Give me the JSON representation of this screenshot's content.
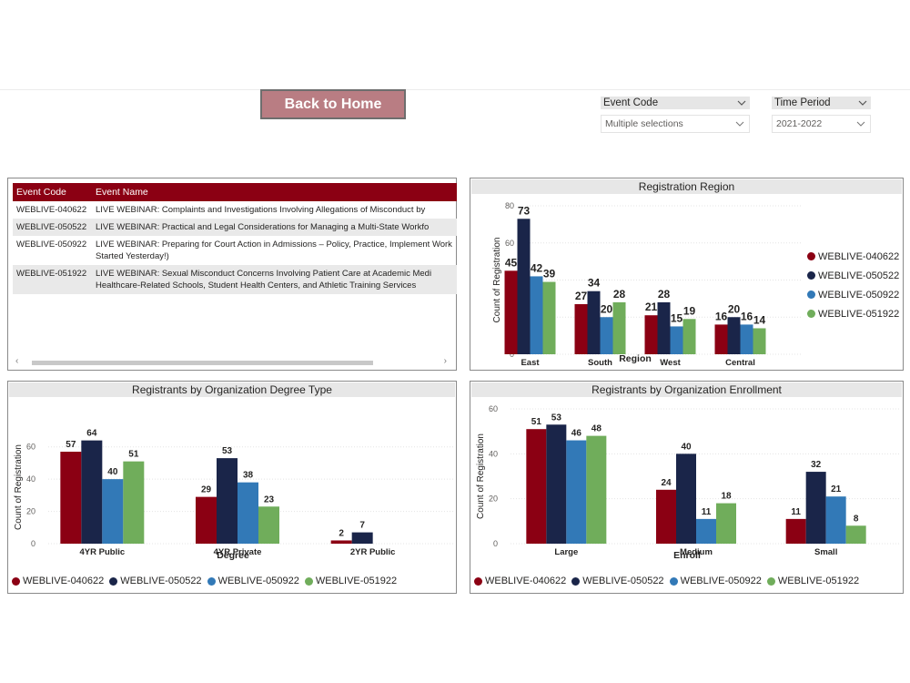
{
  "back_button": "Back to Home",
  "slicers": [
    {
      "title": "Event Code",
      "value": "Multiple selections"
    },
    {
      "title": "Time Period",
      "value": "2021-2022"
    }
  ],
  "events_table": {
    "headers": [
      "Event Code",
      "Event Name"
    ],
    "rows": [
      {
        "code": "WEBLIVE-040622",
        "name": "LIVE WEBINAR: Complaints and Investigations Involving Allegations of Misconduct by"
      },
      {
        "code": "WEBLIVE-050522",
        "name": "LIVE WEBINAR: Practical and Legal Considerations for Managing a Multi-State Workfo"
      },
      {
        "code": "WEBLIVE-050922",
        "name": "LIVE WEBINAR: Preparing for Court Action in Admissions – Policy, Practice, Implement Work Started Yesterday!)"
      },
      {
        "code": "WEBLIVE-051922",
        "name": "LIVE WEBINAR: Sexual Misconduct Concerns Involving Patient Care at Academic Medi Healthcare-Related Schools, Student Health Centers, and Athletic Training Services"
      }
    ]
  },
  "series_colors": [
    "#8b0013",
    "#1a2549",
    "#3279b7",
    "#70ad5b"
  ],
  "chart_data": [
    {
      "type": "bar",
      "title": "Registration Region",
      "xlabel": "Region",
      "ylabel": "Count of Registration",
      "categories": [
        "East",
        "South",
        "West",
        "Central"
      ],
      "ylim": [
        0,
        80
      ],
      "yticks": [
        0,
        20,
        40,
        60,
        80
      ],
      "legend": "right",
      "series": [
        {
          "name": "WEBLIVE-040622",
          "values": [
            45,
            27,
            21,
            16
          ]
        },
        {
          "name": "WEBLIVE-050522",
          "values": [
            73,
            34,
            28,
            20
          ]
        },
        {
          "name": "WEBLIVE-050922",
          "values": [
            42,
            20,
            15,
            16
          ]
        },
        {
          "name": "WEBLIVE-051922",
          "values": [
            39,
            28,
            19,
            14
          ]
        }
      ]
    },
    {
      "type": "bar",
      "title": "Registrants by Organization Degree Type",
      "xlabel": "Degree",
      "ylabel": "Count of Registration",
      "categories": [
        "4YR Public",
        "4YR Private",
        "2YR Public"
      ],
      "ylim": [
        0,
        70
      ],
      "yticks": [
        0,
        20,
        40,
        60
      ],
      "legend": "bottom",
      "series": [
        {
          "name": "WEBLIVE-040622",
          "values": [
            57,
            29,
            2
          ]
        },
        {
          "name": "WEBLIVE-050522",
          "values": [
            64,
            53,
            7
          ]
        },
        {
          "name": "WEBLIVE-050922",
          "values": [
            40,
            38,
            null
          ]
        },
        {
          "name": "WEBLIVE-051922",
          "values": [
            51,
            23,
            null
          ]
        }
      ]
    },
    {
      "type": "bar",
      "title": "Registrants by Organization Enrollment",
      "xlabel": "Enroll",
      "ylabel": "Count of Registration",
      "categories": [
        "Large",
        "Medium",
        "Small"
      ],
      "ylim": [
        0,
        60
      ],
      "yticks": [
        0,
        20,
        40,
        60
      ],
      "legend": "bottom",
      "series": [
        {
          "name": "WEBLIVE-040622",
          "values": [
            51,
            24,
            11
          ]
        },
        {
          "name": "WEBLIVE-050522",
          "values": [
            53,
            40,
            32
          ]
        },
        {
          "name": "WEBLIVE-050922",
          "values": [
            46,
            11,
            21
          ]
        },
        {
          "name": "WEBLIVE-051922",
          "values": [
            48,
            18,
            8
          ]
        }
      ]
    }
  ]
}
